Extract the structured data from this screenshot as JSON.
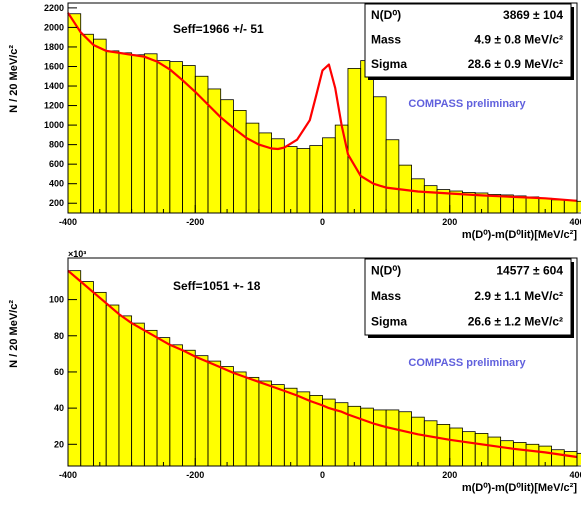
{
  "colors": {
    "fill": "#ffff00",
    "fit": "#ff0000",
    "preliminary": "#6060dd",
    "histogram_line": "#000000"
  },
  "chart_data": [
    {
      "type": "histogram",
      "xlabel": "m(D⁰)-m(D⁰lit)[MeV/c²]",
      "ylabel": "N / 20 MeV/c²",
      "xlim": [
        -400,
        400
      ],
      "ylim": [
        100,
        2250
      ],
      "xticks": [
        -400,
        -200,
        0,
        200,
        400
      ],
      "yticks": [
        200,
        400,
        600,
        800,
        1000,
        1200,
        1400,
        1600,
        1800,
        2000,
        2200
      ],
      "bin_width": 20,
      "bin_edges_start": -400,
      "values": [
        2140,
        1930,
        1880,
        1760,
        1740,
        1720,
        1730,
        1660,
        1650,
        1610,
        1500,
        1370,
        1260,
        1150,
        1020,
        920,
        860,
        780,
        760,
        790,
        870,
        1000,
        1580,
        1660,
        1290,
        850,
        590,
        450,
        380,
        340,
        325,
        310,
        305,
        290,
        285,
        275,
        265,
        250,
        235,
        230,
        220,
        210
      ],
      "fit": [
        [
          -400,
          2150
        ],
        [
          -380,
          1950
        ],
        [
          -360,
          1820
        ],
        [
          -340,
          1760
        ],
        [
          -320,
          1740
        ],
        [
          -300,
          1720
        ],
        [
          -280,
          1700
        ],
        [
          -260,
          1650
        ],
        [
          -240,
          1570
        ],
        [
          -220,
          1460
        ],
        [
          -200,
          1340
        ],
        [
          -180,
          1210
        ],
        [
          -160,
          1080
        ],
        [
          -140,
          970
        ],
        [
          -120,
          870
        ],
        [
          -100,
          800
        ],
        [
          -80,
          760
        ],
        [
          -70,
          755
        ],
        [
          -60,
          770
        ],
        [
          -40,
          850
        ],
        [
          -20,
          1050
        ],
        [
          -10,
          1300
        ],
        [
          0,
          1560
        ],
        [
          10,
          1620
        ],
        [
          20,
          1380
        ],
        [
          30,
          1000
        ],
        [
          40,
          700
        ],
        [
          60,
          480
        ],
        [
          80,
          400
        ],
        [
          100,
          360
        ],
        [
          150,
          320
        ],
        [
          200,
          300
        ],
        [
          250,
          280
        ],
        [
          300,
          265
        ],
        [
          350,
          250
        ],
        [
          400,
          225
        ]
      ],
      "stats": [
        {
          "label": "N(D⁰)",
          "value": "3869 ± 104"
        },
        {
          "label": "Mass",
          "value": "4.9 ± 0.8 MeV/c²"
        },
        {
          "label": "Sigma",
          "value": "28.6 ± 0.9 MeV/c²"
        }
      ],
      "annotation_seff": "Seff=1966 +/- 51",
      "annotation_prelim": "COMPASS preliminary"
    },
    {
      "type": "histogram",
      "xlabel": "m(D⁰)-m(D⁰lit)[MeV/c²]",
      "ylabel": "N / 20 MeV/c²",
      "xlim": [
        -400,
        400
      ],
      "ylim": [
        8,
        123
      ],
      "xticks": [
        -400,
        -200,
        0,
        200,
        400
      ],
      "yticks": [
        20,
        40,
        60,
        80,
        100
      ],
      "axis_multiplier": "×10³",
      "bin_width": 20,
      "bin_edges_start": -400,
      "values": [
        116,
        110,
        104,
        97,
        91,
        87,
        83,
        79,
        75,
        72,
        69,
        66,
        63,
        60,
        57,
        55,
        53,
        51,
        49,
        47,
        45,
        43,
        41,
        40,
        39,
        39,
        38,
        35,
        33,
        31,
        29,
        27,
        26,
        24,
        22,
        21,
        20,
        19,
        17,
        16,
        15,
        13
      ],
      "fit": [
        [
          -400,
          116
        ],
        [
          -380,
          110
        ],
        [
          -360,
          104
        ],
        [
          -340,
          98
        ],
        [
          -320,
          92
        ],
        [
          -300,
          87
        ],
        [
          -280,
          83
        ],
        [
          -260,
          79
        ],
        [
          -240,
          75
        ],
        [
          -220,
          72
        ],
        [
          -200,
          68.5
        ],
        [
          -180,
          65.5
        ],
        [
          -160,
          62.5
        ],
        [
          -140,
          59.5
        ],
        [
          -120,
          57
        ],
        [
          -100,
          54.5
        ],
        [
          -80,
          52
        ],
        [
          -60,
          49.5
        ],
        [
          -40,
          47
        ],
        [
          -20,
          44
        ],
        [
          0,
          41.5
        ],
        [
          10,
          40
        ],
        [
          20,
          39
        ],
        [
          30,
          38
        ],
        [
          40,
          36.5
        ],
        [
          60,
          34
        ],
        [
          80,
          31.5
        ],
        [
          100,
          29.5
        ],
        [
          150,
          25.5
        ],
        [
          200,
          22.5
        ],
        [
          250,
          20
        ],
        [
          300,
          17.5
        ],
        [
          350,
          15.5
        ],
        [
          400,
          13
        ]
      ],
      "stats": [
        {
          "label": "N(D⁰)",
          "value": "14577 ± 604"
        },
        {
          "label": "Mass",
          "value": "2.9 ± 1.1  MeV/c²"
        },
        {
          "label": "Sigma",
          "value": "26.6 ± 1.2  MeV/c²"
        }
      ],
      "annotation_seff": "Seff=1051 +- 18",
      "annotation_prelim": "COMPASS preliminary"
    }
  ]
}
